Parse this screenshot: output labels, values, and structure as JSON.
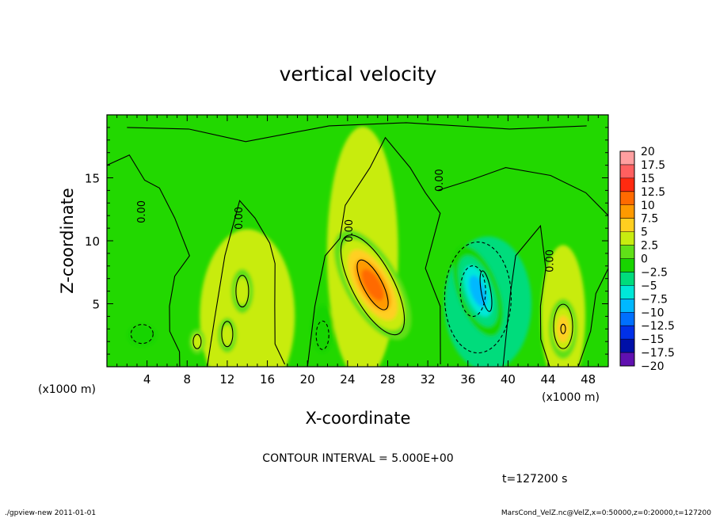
{
  "chart_data": {
    "type": "heatmap",
    "title": "vertical velocity",
    "xlabel": "X-coordinate",
    "ylabel": "Z-coordinate",
    "x_unit_left": "(x1000 m)",
    "x_unit_right": "(x1000 m)",
    "xlim": [
      0,
      50
    ],
    "ylim": [
      0,
      20
    ],
    "x_ticks": [
      "4",
      "8",
      "12",
      "16",
      "20",
      "24",
      "28",
      "32",
      "36",
      "40",
      "44",
      "48"
    ],
    "y_ticks": [
      "5",
      "10",
      "15"
    ],
    "contour_interval_text": "CONTOUR INTERVAL = 5.000E+00",
    "time_text": "t=127200 s",
    "contour_labels": [
      "0.00",
      "0.00",
      "0.00",
      "0.00",
      "0.00"
    ],
    "colorbar": {
      "levels": [
        "20",
        "17.5",
        "15",
        "12.5",
        "10",
        "7.5",
        "5",
        "2.5",
        "0",
        "−2.5",
        "−5",
        "−7.5",
        "−10",
        "−12.5",
        "−15",
        "−17.5",
        "−20"
      ],
      "colors": [
        "#ff9fa0",
        "#ff6060",
        "#ff2a10",
        "#ff6a00",
        "#ff9a00",
        "#ffcf20",
        "#c8ec10",
        "#60e018",
        "#18d400",
        "#00dc7c",
        "#00e8d8",
        "#00b8ff",
        "#0070ff",
        "#0030e8",
        "#0010a8",
        "#6010b0"
      ]
    },
    "features": [
      {
        "kind": "updraft",
        "x": 26.5,
        "z": 6.5,
        "peak": 12.5
      },
      {
        "kind": "updraft",
        "x": 45.5,
        "z": 3.0,
        "peak": 8
      },
      {
        "kind": "updraft",
        "x": 13.5,
        "z": 6.0,
        "peak": 6
      },
      {
        "kind": "updraft",
        "x": 12.0,
        "z": 2.5,
        "peak": 6
      },
      {
        "kind": "updraft",
        "x": 9.0,
        "z": 2.0,
        "peak": 5
      },
      {
        "kind": "downdraft",
        "x": 37.0,
        "z": 6.0,
        "peak": -9
      },
      {
        "kind": "downdraft",
        "x": 3.5,
        "z": 2.5,
        "peak": -3
      },
      {
        "kind": "downdraft",
        "x": 21.5,
        "z": 2.5,
        "peak": -3
      }
    ]
  },
  "footer": {
    "left": "./gpview-new  2011-01-01",
    "right": "MarsCond_VelZ.nc@VelZ,x=0:50000,z=0:20000,t=127200"
  }
}
